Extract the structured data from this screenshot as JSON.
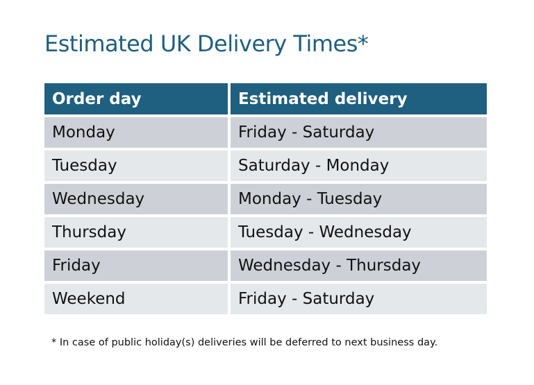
{
  "title": "Estimated UK Delivery Times*",
  "table": {
    "headers": [
      "Order day",
      "Estimated delivery"
    ],
    "rows": [
      [
        "Monday",
        "Friday - Saturday"
      ],
      [
        "Tuesday",
        "Saturday - Monday"
      ],
      [
        "Wednesday",
        "Monday - Tuesday"
      ],
      [
        "Thursday",
        "Tuesday - Wednesday"
      ],
      [
        "Friday",
        "Wednesday - Thursday"
      ],
      [
        "Weekend",
        "Friday - Saturday"
      ]
    ]
  },
  "footnote": "* In case of public holiday(s) deliveries will be deferred to next business day.",
  "colors": {
    "header": "#1f5f80",
    "row_dark": "#cdd1d7",
    "row_light": "#e5e8eb"
  }
}
